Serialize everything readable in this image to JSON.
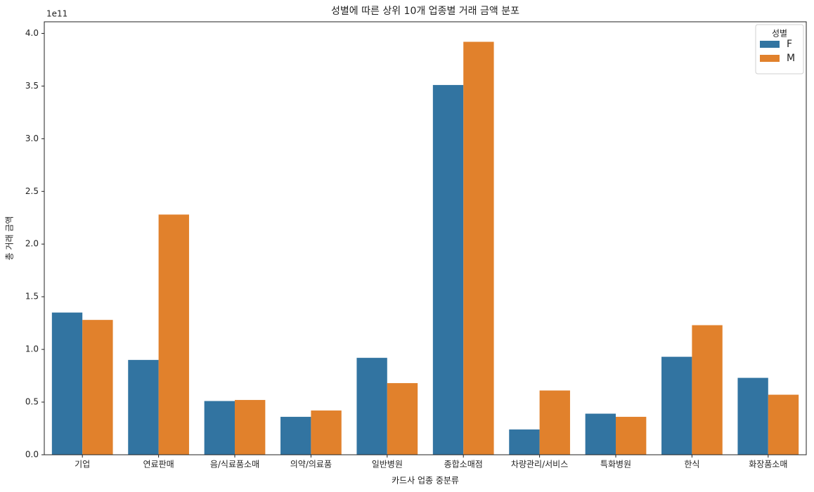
{
  "chart_data": {
    "type": "bar",
    "title": "성별에 따른 상위 10개 업종별 거래 금액 분포",
    "x_label": "카드사 업종 중분류",
    "y_label": "총 거래 금액",
    "y_offset_label": "1e11",
    "categories": [
      "기업",
      "연료판매",
      "음/식료품소매",
      "의약/의료품",
      "일반병원",
      "종합소매점",
      "차량관리/서비스",
      "특화병원",
      "한식",
      "화장품소매"
    ],
    "series": [
      {
        "name": "F",
        "color": "#3274a1",
        "values": [
          1.35,
          0.9,
          0.51,
          0.36,
          0.92,
          3.51,
          0.24,
          0.39,
          0.93,
          0.73
        ]
      },
      {
        "name": "M",
        "color": "#e1812c",
        "values": [
          1.28,
          2.28,
          0.52,
          0.42,
          0.68,
          3.92,
          0.61,
          0.36,
          1.23,
          0.57
        ]
      }
    ],
    "legend_title": "성별",
    "legend": "upper right",
    "ylim": [
      0,
      4.11
    ],
    "yticks": [
      {
        "value": 0,
        "label": "0.0"
      },
      0.5,
      {
        "value": 1,
        "label": "1.0"
      },
      1.5,
      {
        "value": 2,
        "label": "2.0"
      },
      2.5,
      {
        "value": 3,
        "label": "3.0"
      },
      3.5,
      {
        "value": 4,
        "label": "4.0"
      }
    ],
    "grid": false
  }
}
